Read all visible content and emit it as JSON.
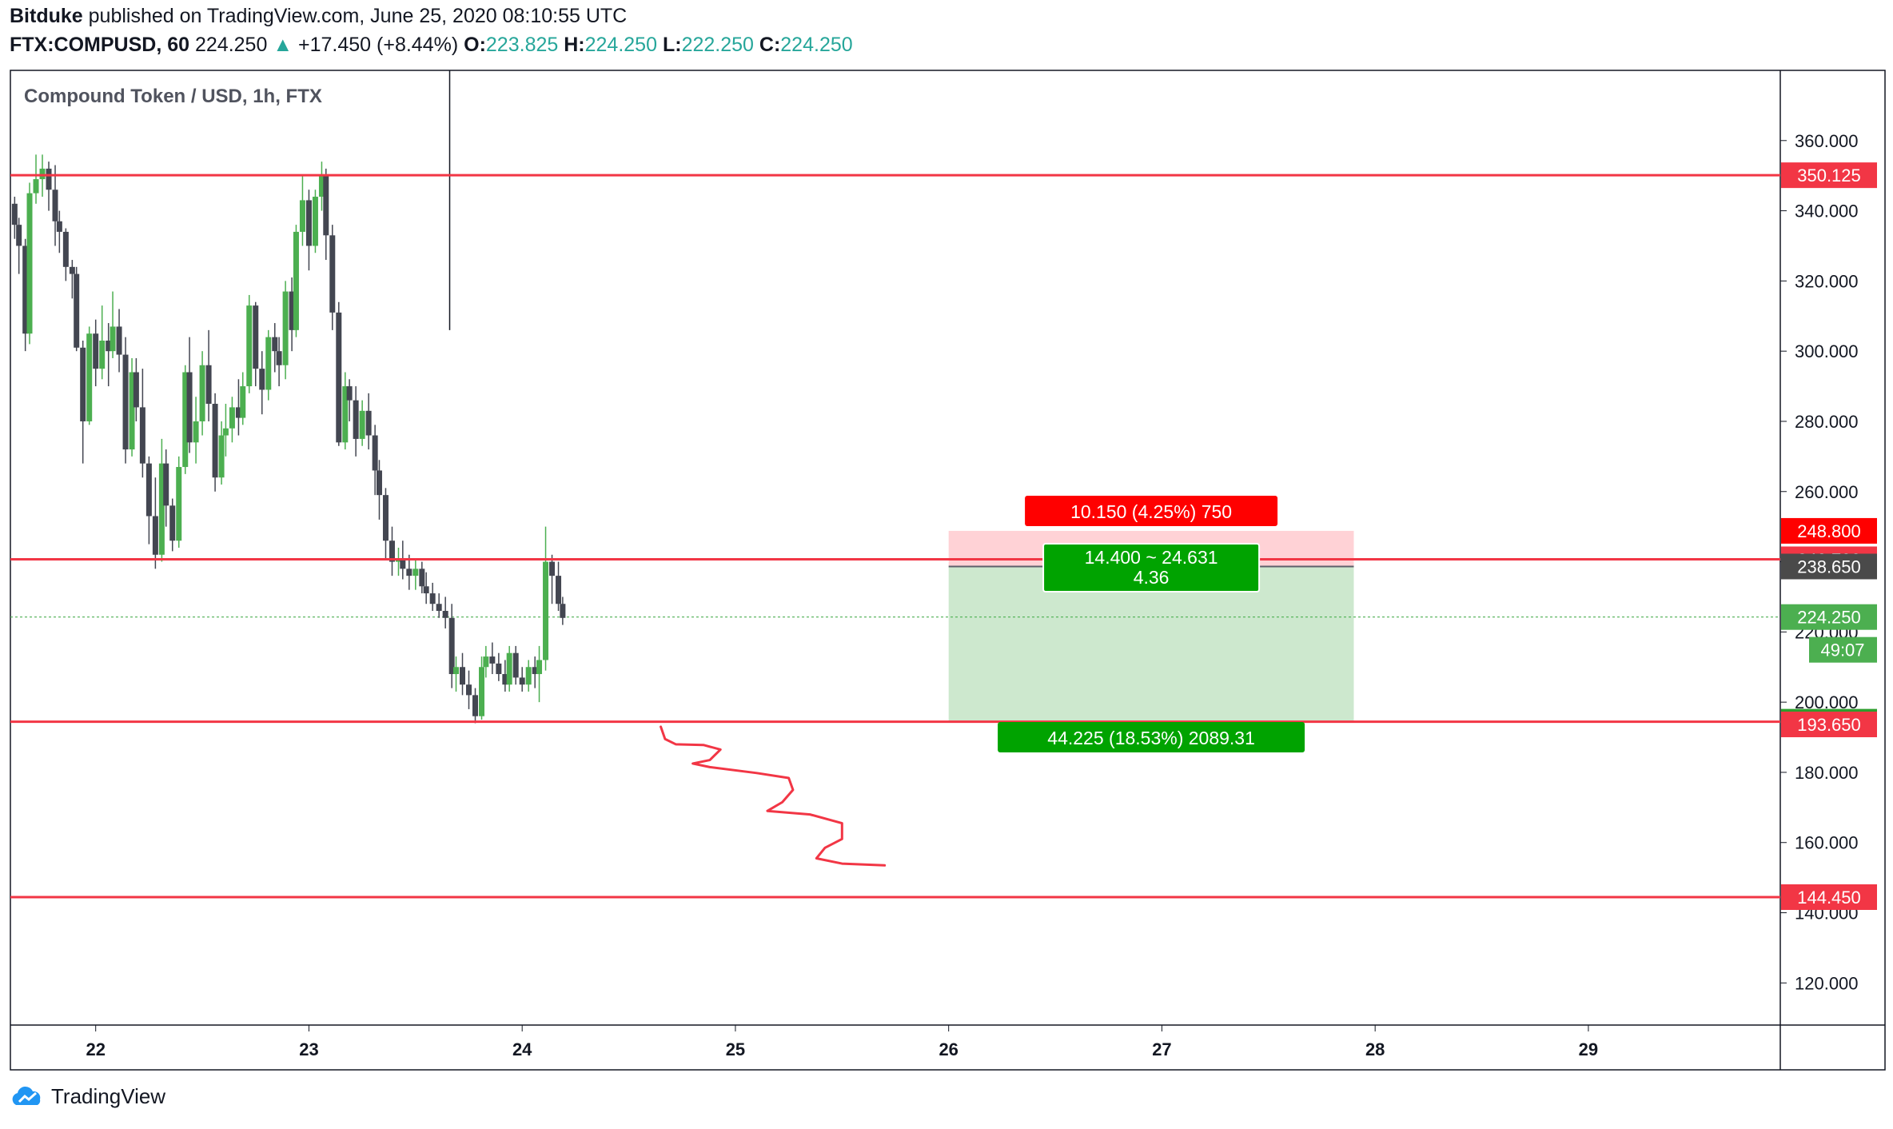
{
  "header": {
    "publisher": "Bitduke",
    "published_text": "published on TradingView.com, June 25, 2020 08:10:55 UTC",
    "symbol": "FTX:COMPUSD, 60",
    "last": "224.250",
    "change": "+17.450 (+8.44%)",
    "o_label": "O:",
    "o": "223.825",
    "h_label": "H:",
    "h": "224.250",
    "l_label": "L:",
    "l": "222.250",
    "c_label": "C:",
    "c": "224.250"
  },
  "footer": {
    "brand": "TradingView"
  },
  "chart_data": {
    "type": "candlestick",
    "title": "Compound Token / USD, 1h, FTX",
    "ylim": [
      108,
      380
    ],
    "y_ticks": [
      120,
      140,
      160,
      180,
      200,
      220,
      240,
      260,
      280,
      300,
      320,
      340,
      360
    ],
    "y_tick_labels": [
      "120.000",
      "140.000",
      "160.000",
      "180.000",
      "200.000",
      "220.000",
      "240.000",
      "260.000",
      "280.000",
      "300.000",
      "320.000",
      "340.000",
      "360.000"
    ],
    "x_ticks": [
      22,
      23,
      24,
      25,
      26,
      27,
      28,
      29
    ],
    "x_tick_labels": [
      "22",
      "23",
      "24",
      "25",
      "26",
      "27",
      "28",
      "29"
    ],
    "xlim": [
      21.6,
      29.9
    ],
    "candles": [
      [
        21.62,
        342,
        344,
        332,
        336
      ],
      [
        21.64,
        336,
        338,
        322,
        330
      ],
      [
        21.67,
        330,
        332,
        300,
        305
      ],
      [
        21.69,
        305,
        348,
        302,
        345
      ],
      [
        21.72,
        345,
        356,
        342,
        349
      ],
      [
        21.75,
        349,
        356,
        344,
        352
      ],
      [
        21.78,
        352,
        354,
        340,
        346
      ],
      [
        21.81,
        346,
        353,
        330,
        337
      ],
      [
        21.83,
        337,
        340,
        328,
        334
      ],
      [
        21.86,
        334,
        335,
        320,
        324
      ],
      [
        21.89,
        324,
        326,
        315,
        322
      ],
      [
        21.91,
        322,
        324,
        300,
        301
      ],
      [
        21.94,
        301,
        303,
        268,
        280
      ],
      [
        21.97,
        280,
        307,
        279,
        305
      ],
      [
        22.0,
        305,
        309,
        290,
        295
      ],
      [
        22.03,
        295,
        313,
        292,
        303
      ],
      [
        22.06,
        303,
        308,
        290,
        300
      ],
      [
        22.08,
        300,
        317,
        298,
        307
      ],
      [
        22.11,
        307,
        312,
        294,
        299
      ],
      [
        22.14,
        299,
        304,
        268,
        272
      ],
      [
        22.17,
        272,
        298,
        270,
        294
      ],
      [
        22.19,
        294,
        298,
        280,
        284
      ],
      [
        22.22,
        284,
        295,
        264,
        268
      ],
      [
        22.25,
        268,
        270,
        245,
        253
      ],
      [
        22.28,
        253,
        264,
        238,
        242
      ],
      [
        22.31,
        242,
        275,
        240,
        268
      ],
      [
        22.33,
        268,
        272,
        250,
        256
      ],
      [
        22.36,
        256,
        258,
        243,
        246
      ],
      [
        22.39,
        246,
        270,
        244,
        267
      ],
      [
        22.42,
        267,
        296,
        265,
        294
      ],
      [
        22.44,
        294,
        304,
        271,
        274
      ],
      [
        22.47,
        274,
        287,
        268,
        280
      ],
      [
        22.5,
        280,
        300,
        276,
        296
      ],
      [
        22.53,
        296,
        306,
        280,
        285
      ],
      [
        22.56,
        285,
        288,
        260,
        264
      ],
      [
        22.59,
        264,
        280,
        262,
        276
      ],
      [
        22.61,
        276,
        285,
        270,
        278
      ],
      [
        22.64,
        278,
        287,
        274,
        284
      ],
      [
        22.67,
        284,
        292,
        276,
        281
      ],
      [
        22.69,
        281,
        294,
        279,
        290
      ],
      [
        22.72,
        290,
        316,
        288,
        313
      ],
      [
        22.75,
        313,
        314,
        290,
        295
      ],
      [
        22.78,
        295,
        300,
        282,
        289
      ],
      [
        22.81,
        289,
        306,
        286,
        304
      ],
      [
        22.84,
        304,
        308,
        294,
        300
      ],
      [
        22.86,
        300,
        304,
        290,
        296
      ],
      [
        22.89,
        296,
        320,
        292,
        317
      ],
      [
        22.92,
        317,
        321,
        300,
        306
      ],
      [
        22.94,
        306,
        336,
        304,
        334
      ],
      [
        22.97,
        334,
        350,
        330,
        343
      ],
      [
        23.0,
        343,
        346,
        323,
        330
      ],
      [
        23.03,
        330,
        346,
        328,
        344
      ],
      [
        23.06,
        344,
        354,
        340,
        350
      ],
      [
        23.08,
        350,
        352,
        326,
        333
      ],
      [
        23.11,
        333,
        336,
        306,
        311
      ],
      [
        23.14,
        311,
        314,
        273,
        274
      ],
      [
        23.17,
        274,
        294,
        272,
        290
      ],
      [
        23.19,
        290,
        292,
        280,
        286
      ],
      [
        23.22,
        286,
        290,
        270,
        275
      ],
      [
        23.25,
        275,
        286,
        273,
        283
      ],
      [
        23.28,
        283,
        288,
        272,
        276
      ],
      [
        23.31,
        276,
        279,
        259,
        266
      ],
      [
        23.33,
        266,
        269,
        252,
        259
      ],
      [
        23.36,
        259,
        261,
        241,
        246
      ],
      [
        23.39,
        246,
        250,
        236,
        240
      ],
      [
        23.42,
        240,
        244,
        236,
        241
      ],
      [
        23.44,
        241,
        246,
        235,
        238
      ],
      [
        23.47,
        238,
        242,
        232,
        236
      ],
      [
        23.5,
        236,
        241,
        232,
        238
      ],
      [
        23.53,
        238,
        240,
        231,
        233
      ],
      [
        23.55,
        233,
        237,
        228,
        231
      ],
      [
        23.58,
        231,
        234,
        226,
        228
      ],
      [
        23.61,
        228,
        231,
        224,
        226
      ],
      [
        23.64,
        226,
        230,
        221,
        224
      ],
      [
        23.67,
        224,
        228,
        204,
        208
      ],
      [
        23.69,
        208,
        213,
        203,
        210
      ],
      [
        23.72,
        210,
        214,
        202,
        205
      ],
      [
        23.75,
        205,
        209,
        198,
        202
      ],
      [
        23.78,
        202,
        204,
        194,
        196
      ],
      [
        23.81,
        196,
        213,
        195,
        210
      ],
      [
        23.83,
        210,
        216,
        207,
        213
      ],
      [
        23.86,
        213,
        217,
        208,
        211
      ],
      [
        23.89,
        211,
        214,
        206,
        208
      ],
      [
        23.92,
        208,
        212,
        203,
        205
      ],
      [
        23.94,
        205,
        216,
        203,
        214
      ],
      [
        23.97,
        214,
        216,
        205,
        207
      ],
      [
        24.0,
        207,
        210,
        203,
        205
      ],
      [
        24.03,
        205,
        212,
        203,
        210
      ],
      [
        24.06,
        210,
        213,
        204,
        208
      ],
      [
        24.08,
        208,
        216,
        200,
        212
      ],
      [
        24.11,
        212,
        250,
        209,
        240
      ],
      [
        24.14,
        240,
        242,
        228,
        236
      ],
      [
        24.17,
        236,
        240,
        226,
        228
      ],
      [
        24.19,
        228,
        230,
        222,
        224
      ]
    ],
    "horizontal_levels": [
      {
        "value": 350.125,
        "label": "350.125"
      },
      {
        "value": 240.7,
        "label": "240.700"
      },
      {
        "value": 194.425,
        "label": "194.425"
      },
      {
        "value": 144.45,
        "label": "144.450"
      }
    ],
    "axis_badges": [
      {
        "value": 248.8,
        "label": "248.800",
        "color": "#ff0000"
      },
      {
        "value": 238.65,
        "label": "238.650",
        "color": "#4a4a4a"
      },
      {
        "value": 224.25,
        "label": "224.250",
        "color": "#4caf50"
      },
      {
        "value": 193.65,
        "label": "193.650",
        "color": "#f23645"
      }
    ],
    "countdown": "49:07",
    "position": {
      "x_start": 26.0,
      "x_end": 27.9,
      "entry": 238.65,
      "stop": 248.8,
      "target": 194.425,
      "stop_label": "10.150 (4.25%) 750",
      "center_label_1": "14.400 ~ 24.631",
      "center_label_2": "4.36",
      "target_label": "44.225 (18.53%) 2089.31"
    },
    "vertical_marker_x": 23.66,
    "current_price": 224.25,
    "projection_path": [
      [
        24.65,
        193
      ],
      [
        24.67,
        189.5
      ],
      [
        24.72,
        188
      ],
      [
        24.85,
        187.8
      ],
      [
        24.93,
        186.5
      ],
      [
        24.88,
        183.5
      ],
      [
        24.8,
        182.5
      ],
      [
        24.88,
        181.5
      ],
      [
        25.1,
        179.8
      ],
      [
        25.25,
        178.4
      ],
      [
        25.27,
        175
      ],
      [
        25.22,
        171.5
      ],
      [
        25.15,
        169
      ],
      [
        25.35,
        168
      ],
      [
        25.5,
        165.5
      ],
      [
        25.5,
        161
      ],
      [
        25.42,
        158.5
      ],
      [
        25.38,
        155.5
      ],
      [
        25.5,
        154
      ],
      [
        25.7,
        153.5
      ]
    ],
    "grid": true
  }
}
